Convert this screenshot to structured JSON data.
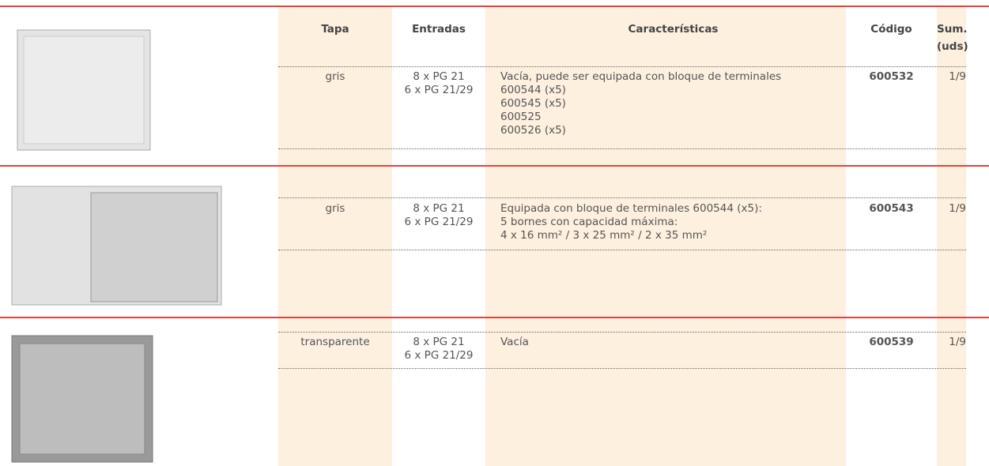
{
  "header": {
    "columns": [
      "Tapa",
      "Entradas",
      "Características",
      "Código",
      "Sum. (uds)"
    ]
  },
  "sections": [
    {
      "tapa": "gris",
      "entradas": [
        "8 x PG 21",
        "6 x PG 21/29"
      ],
      "caracteristicas": [
        "Vacía, puede ser equipada con bloque de terminales",
        "600544 (x5)",
        "600545 (x5)",
        "600525",
        "600526 (x5)"
      ],
      "codigo": "600532",
      "sum": "1/9"
    },
    {
      "tapa": "gris",
      "entradas": [
        "8 x PG 21",
        "6 x PG 21/29"
      ],
      "caracteristicas": [
        "Equipada con bloque de terminales 600544 (x5):",
        "5 bornes con capacidad máxima:",
        "4 x 16 mm² / 3 x 25 mm² / 2 x 35 mm²"
      ],
      "codigo": "600543",
      "sum": "1/9"
    },
    {
      "tapa": "transparente",
      "entradas": [
        "8 x PG 21",
        "6 x PG 21/29"
      ],
      "caracteristicas": [
        "Vacía"
      ],
      "codigo": "600539",
      "sum": "1/9"
    }
  ]
}
